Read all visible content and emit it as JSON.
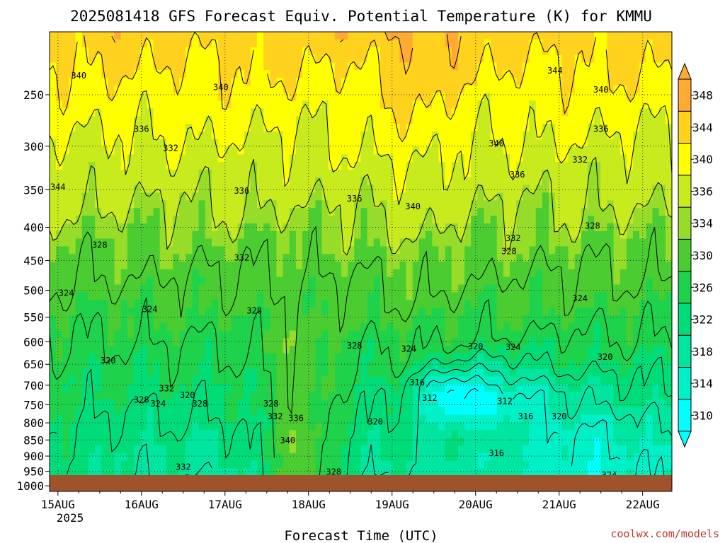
{
  "chart_data": {
    "type": "heatmap",
    "title": "2025081418 GFS Forecast Equiv. Potential Temperature (K) for KMMU",
    "xlabel": "Forecast Time (UTC)",
    "ylabel": "",
    "credit": "coolwx.com/models",
    "x_ticks": [
      "15AUG",
      "16AUG",
      "17AUG",
      "18AUG",
      "19AUG",
      "20AUG",
      "21AUG",
      "22AUG"
    ],
    "x_year_label": "2025",
    "y_ticks": [
      250,
      300,
      350,
      400,
      450,
      500,
      550,
      600,
      650,
      700,
      750,
      800,
      850,
      900,
      950,
      1000
    ],
    "y_scale": "log-pressure (hPa), inverted",
    "ylim": [
      200,
      1020
    ],
    "colorbar": {
      "levels": [
        310,
        314,
        318,
        322,
        326,
        330,
        334,
        336,
        340,
        344,
        348
      ],
      "colors": [
        "#00ffff",
        "#00f0c8",
        "#00e6a0",
        "#00dc78",
        "#1ed24b",
        "#4bcd32",
        "#96dc28",
        "#c8eb1e",
        "#ffff00",
        "#ffd21e",
        "#ffaa32"
      ],
      "extend": "both"
    },
    "contour_interval": 4,
    "contour_labels": [
      {
        "day": 15.0,
        "p": 350,
        "value": "344"
      },
      {
        "day": 15.25,
        "p": 236,
        "value": "340"
      },
      {
        "day": 16.0,
        "p": 285,
        "value": "336"
      },
      {
        "day": 16.35,
        "p": 305,
        "value": "332"
      },
      {
        "day": 15.5,
        "p": 430,
        "value": "328"
      },
      {
        "day": 15.1,
        "p": 510,
        "value": "324"
      },
      {
        "day": 15.6,
        "p": 648,
        "value": "320"
      },
      {
        "day": 16.0,
        "p": 745,
        "value": "328"
      },
      {
        "day": 16.2,
        "p": 755,
        "value": "324"
      },
      {
        "day": 16.3,
        "p": 715,
        "value": "332"
      },
      {
        "day": 16.55,
        "p": 733,
        "value": "320"
      },
      {
        "day": 16.7,
        "p": 755,
        "value": "328"
      },
      {
        "day": 16.5,
        "p": 945,
        "value": "332"
      },
      {
        "day": 16.1,
        "p": 540,
        "value": "324"
      },
      {
        "day": 16.95,
        "p": 246,
        "value": "340"
      },
      {
        "day": 17.2,
        "p": 355,
        "value": "336"
      },
      {
        "day": 17.2,
        "p": 450,
        "value": "332"
      },
      {
        "day": 17.35,
        "p": 543,
        "value": "328"
      },
      {
        "day": 17.55,
        "p": 755,
        "value": "328"
      },
      {
        "day": 17.6,
        "p": 790,
        "value": "332"
      },
      {
        "day": 17.85,
        "p": 795,
        "value": "336"
      },
      {
        "day": 17.75,
        "p": 860,
        "value": "340"
      },
      {
        "day": 18.55,
        "p": 365,
        "value": "336"
      },
      {
        "day": 18.3,
        "p": 962,
        "value": "328"
      },
      {
        "day": 18.8,
        "p": 805,
        "value": "320"
      },
      {
        "day": 18.55,
        "p": 615,
        "value": "328"
      },
      {
        "day": 19.2,
        "p": 622,
        "value": "324"
      },
      {
        "day": 19.3,
        "p": 700,
        "value": "316"
      },
      {
        "day": 19.45,
        "p": 740,
        "value": "312"
      },
      {
        "day": 19.25,
        "p": 375,
        "value": "340"
      },
      {
        "day": 20.25,
        "p": 300,
        "value": "340"
      },
      {
        "day": 20.5,
        "p": 335,
        "value": "336"
      },
      {
        "day": 20.45,
        "p": 420,
        "value": "332"
      },
      {
        "day": 20.4,
        "p": 440,
        "value": "328"
      },
      {
        "day": 20.0,
        "p": 616,
        "value": "320"
      },
      {
        "day": 20.45,
        "p": 618,
        "value": "324"
      },
      {
        "day": 20.35,
        "p": 748,
        "value": "312"
      },
      {
        "day": 20.6,
        "p": 790,
        "value": "316"
      },
      {
        "day": 21.0,
        "p": 790,
        "value": "320"
      },
      {
        "day": 20.25,
        "p": 900,
        "value": "316"
      },
      {
        "day": 21.55,
        "p": 640,
        "value": "320"
      },
      {
        "day": 21.25,
        "p": 520,
        "value": "324"
      },
      {
        "day": 21.4,
        "p": 402,
        "value": "328"
      },
      {
        "day": 21.25,
        "p": 318,
        "value": "332"
      },
      {
        "day": 21.5,
        "p": 285,
        "value": "336"
      },
      {
        "day": 21.5,
        "p": 248,
        "value": "340"
      },
      {
        "day": 20.95,
        "p": 232,
        "value": "344"
      },
      {
        "day": 21.6,
        "p": 972,
        "value": "324"
      }
    ]
  }
}
